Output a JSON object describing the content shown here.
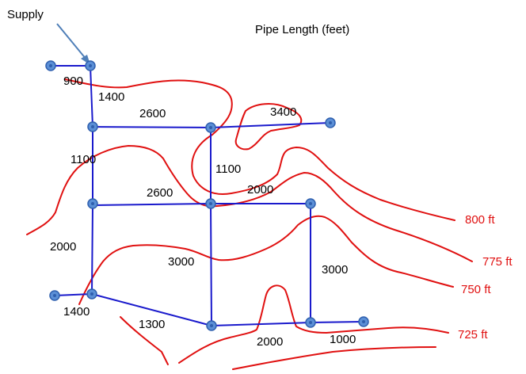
{
  "title": "Pipe Length (feet)",
  "supply_label": "Supply",
  "colors": {
    "pipe": "#1a1acc",
    "contour": "#e01010",
    "node_fill": "#5b8fd6",
    "node_stroke": "#2f5fae",
    "arrow": "#4f7fb8"
  },
  "pipe_lengths": [
    "900",
    "1400",
    "2600",
    "3400",
    "1100",
    "1100",
    "2600",
    "2000",
    "2000",
    "3000",
    "3000",
    "1400",
    "1300",
    "2000",
    "1000"
  ],
  "contours": [
    "800 ft",
    "775 ft",
    "750 ft",
    "725 ft"
  ]
}
